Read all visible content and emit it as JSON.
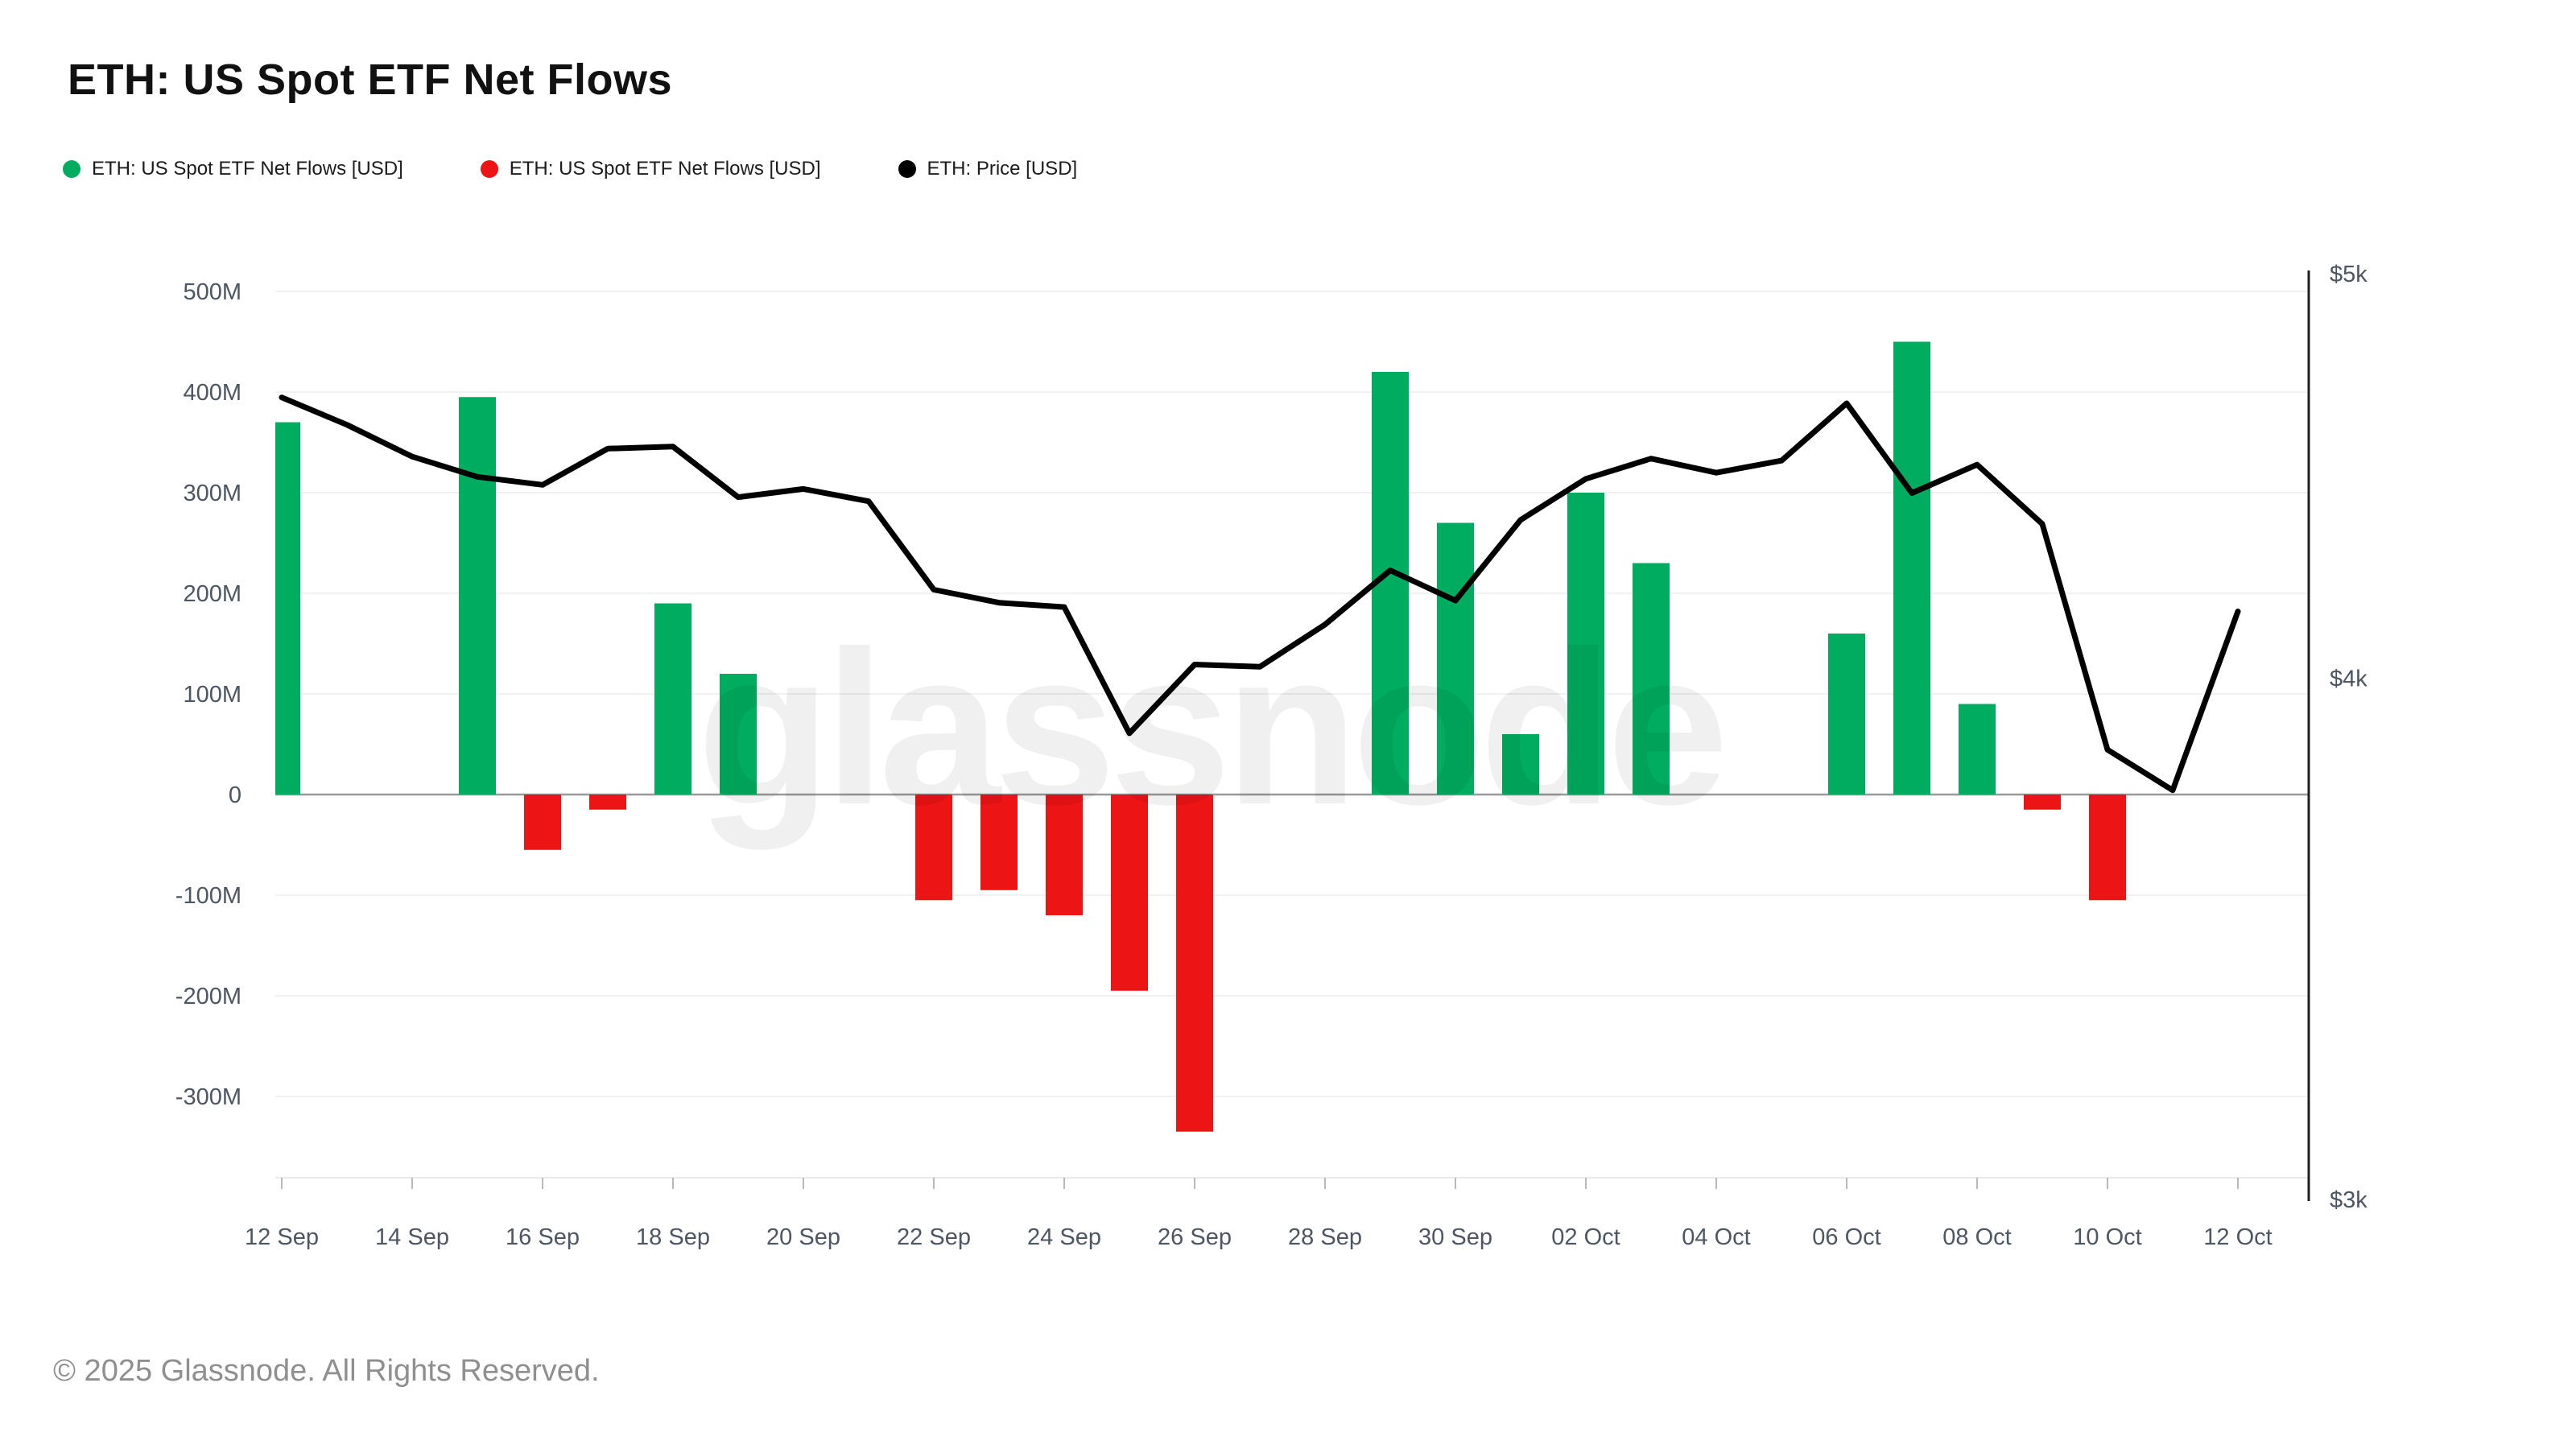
{
  "page": {
    "title": "ETH: US Spot ETF Net Flows",
    "footer": "© 2025 Glassnode. All Rights Reserved.",
    "watermark": "glassnode"
  },
  "legend": [
    {
      "label": "ETH: US Spot ETF Net Flows [USD]",
      "color": "#00ac5f",
      "marker": "circle-icon"
    },
    {
      "label": "ETH: US Spot ETF Net Flows [USD]",
      "color": "#ec1414",
      "marker": "circle-icon"
    },
    {
      "label": "ETH: Price [USD]",
      "color": "#000000",
      "marker": "circle-icon"
    }
  ],
  "chart_data": {
    "type": [
      "bar",
      "line"
    ],
    "title": "ETH: US Spot ETF Net Flows",
    "x_axis": {
      "start_date": "12 Sep",
      "end_date": "12 Oct",
      "days_total": 31,
      "tick_labels": [
        "12 Sep",
        "14 Sep",
        "16 Sep",
        "18 Sep",
        "20 Sep",
        "22 Sep",
        "24 Sep",
        "26 Sep",
        "28 Sep",
        "30 Sep",
        "02 Oct",
        "04 Oct",
        "06 Oct",
        "08 Oct",
        "10 Oct",
        "12 Oct"
      ],
      "tick_day_indices": [
        0,
        2,
        4,
        6,
        8,
        10,
        12,
        14,
        16,
        18,
        20,
        22,
        24,
        26,
        28,
        30
      ]
    },
    "flow_axis": {
      "side": "left",
      "unit": "USD (millions)",
      "tick_labels": [
        "500M",
        "400M",
        "300M",
        "200M",
        "100M",
        "0",
        "-100M",
        "-200M",
        "-300M"
      ],
      "tick_values": [
        500,
        400,
        300,
        200,
        100,
        0,
        -100,
        -200,
        -300
      ],
      "grid": true
    },
    "price_axis": {
      "side": "right",
      "scale": "log",
      "tick_labels": [
        "$5k",
        "$4k",
        "$3k"
      ],
      "tick_values": [
        5000,
        4000,
        3000
      ]
    },
    "net_flows": {
      "series_name": "ETH: US Spot ETF Net Flows [USD]",
      "positive_color": "#00ac5f",
      "negative_color": "#ec1414",
      "unit": "USD millions",
      "points": [
        {
          "date": "12 Sep",
          "day": 0,
          "value": 370
        },
        {
          "date": "15 Sep",
          "day": 3,
          "value": 395
        },
        {
          "date": "16 Sep",
          "day": 4,
          "value": -55
        },
        {
          "date": "17 Sep",
          "day": 5,
          "value": -15
        },
        {
          "date": "18 Sep",
          "day": 6,
          "value": 190
        },
        {
          "date": "19 Sep",
          "day": 7,
          "value": 120
        },
        {
          "date": "22 Sep",
          "day": 10,
          "value": -105
        },
        {
          "date": "23 Sep",
          "day": 11,
          "value": -95
        },
        {
          "date": "24 Sep",
          "day": 12,
          "value": -120
        },
        {
          "date": "25 Sep",
          "day": 13,
          "value": -195
        },
        {
          "date": "26 Sep",
          "day": 14,
          "value": -335
        },
        {
          "date": "29 Sep",
          "day": 17,
          "value": 420
        },
        {
          "date": "30 Sep",
          "day": 18,
          "value": 270
        },
        {
          "date": "01 Oct",
          "day": 19,
          "value": 60
        },
        {
          "date": "02 Oct",
          "day": 20,
          "value": 300
        },
        {
          "date": "03 Oct",
          "day": 21,
          "value": 230
        },
        {
          "date": "06 Oct",
          "day": 24,
          "value": 160
        },
        {
          "date": "07 Oct",
          "day": 25,
          "value": 450
        },
        {
          "date": "08 Oct",
          "day": 26,
          "value": 90
        },
        {
          "date": "09 Oct",
          "day": 27,
          "value": -15
        },
        {
          "date": "10 Oct",
          "day": 28,
          "value": -105
        }
      ]
    },
    "price": {
      "series_name": "ETH: Price [USD]",
      "color": "#000000",
      "points": [
        {
          "date": "12 Sep",
          "day": 0,
          "usd": 4670
        },
        {
          "date": "13 Sep",
          "day": 1,
          "usd": 4600
        },
        {
          "date": "14 Sep",
          "day": 2,
          "usd": 4520
        },
        {
          "date": "15 Sep",
          "day": 3,
          "usd": 4470
        },
        {
          "date": "16 Sep",
          "day": 4,
          "usd": 4450
        },
        {
          "date": "17 Sep",
          "day": 5,
          "usd": 4540
        },
        {
          "date": "18 Sep",
          "day": 6,
          "usd": 4545
        },
        {
          "date": "19 Sep",
          "day": 7,
          "usd": 4420
        },
        {
          "date": "20 Sep",
          "day": 8,
          "usd": 4440
        },
        {
          "date": "21 Sep",
          "day": 9,
          "usd": 4410
        },
        {
          "date": "22 Sep",
          "day": 10,
          "usd": 4200
        },
        {
          "date": "23 Sep",
          "day": 11,
          "usd": 4170
        },
        {
          "date": "24 Sep",
          "day": 12,
          "usd": 4160
        },
        {
          "date": "25 Sep",
          "day": 13,
          "usd": 3880
        },
        {
          "date": "26 Sep",
          "day": 14,
          "usd": 4030
        },
        {
          "date": "27 Sep",
          "day": 15,
          "usd": 4025
        },
        {
          "date": "28 Sep",
          "day": 16,
          "usd": 4120
        },
        {
          "date": "29 Sep",
          "day": 17,
          "usd": 4245
        },
        {
          "date": "30 Sep",
          "day": 18,
          "usd": 4175
        },
        {
          "date": "01 Oct",
          "day": 19,
          "usd": 4365
        },
        {
          "date": "02 Oct",
          "day": 20,
          "usd": 4465
        },
        {
          "date": "03 Oct",
          "day": 21,
          "usd": 4515
        },
        {
          "date": "04 Oct",
          "day": 22,
          "usd": 4480
        },
        {
          "date": "05 Oct",
          "day": 23,
          "usd": 4510
        },
        {
          "date": "06 Oct",
          "day": 24,
          "usd": 4655
        },
        {
          "date": "07 Oct",
          "day": 25,
          "usd": 4430
        },
        {
          "date": "08 Oct",
          "day": 26,
          "usd": 4500
        },
        {
          "date": "09 Oct",
          "day": 27,
          "usd": 4355
        },
        {
          "date": "10 Oct",
          "day": 28,
          "usd": 3845
        },
        {
          "date": "11 Oct",
          "day": 29,
          "usd": 3760
        },
        {
          "date": "12 Oct",
          "day": 30,
          "usd": 4150
        }
      ]
    },
    "layout_hints": {
      "legend_position": "top-left",
      "grid": "horizontal-only",
      "watermark_color": "#ececec",
      "zero_line_color": "#999999",
      "plot_border_bottom_color": "#e9e9e9",
      "right_spine_color": "#1f1f1f"
    }
  }
}
